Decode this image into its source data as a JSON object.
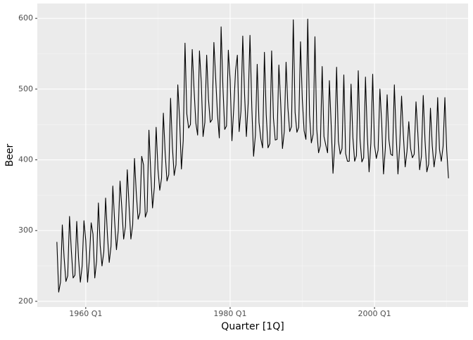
{
  "chart_data": {
    "type": "line",
    "x_label": "Quarter [1Q]",
    "y_label": "Beer",
    "x": [
      "1956 Q1",
      "1956 Q2",
      "1956 Q3",
      "1956 Q4",
      "1957 Q1",
      "1957 Q2",
      "1957 Q3",
      "1957 Q4",
      "1958 Q1",
      "1958 Q2",
      "1958 Q3",
      "1958 Q4",
      "1959 Q1",
      "1959 Q2",
      "1959 Q3",
      "1959 Q4",
      "1960 Q1",
      "1960 Q2",
      "1960 Q3",
      "1960 Q4",
      "1961 Q1",
      "1961 Q2",
      "1961 Q3",
      "1961 Q4",
      "1962 Q1",
      "1962 Q2",
      "1962 Q3",
      "1962 Q4",
      "1963 Q1",
      "1963 Q2",
      "1963 Q3",
      "1963 Q4",
      "1964 Q1",
      "1964 Q2",
      "1964 Q3",
      "1964 Q4",
      "1965 Q1",
      "1965 Q2",
      "1965 Q3",
      "1965 Q4",
      "1966 Q1",
      "1966 Q2",
      "1966 Q3",
      "1966 Q4",
      "1967 Q1",
      "1967 Q2",
      "1967 Q3",
      "1967 Q4",
      "1968 Q1",
      "1968 Q2",
      "1968 Q3",
      "1968 Q4",
      "1969 Q1",
      "1969 Q2",
      "1969 Q3",
      "1969 Q4",
      "1970 Q1",
      "1970 Q2",
      "1970 Q3",
      "1970 Q4",
      "1971 Q1",
      "1971 Q2",
      "1971 Q3",
      "1971 Q4",
      "1972 Q1",
      "1972 Q2",
      "1972 Q3",
      "1972 Q4",
      "1973 Q1",
      "1973 Q2",
      "1973 Q3",
      "1973 Q4",
      "1974 Q1",
      "1974 Q2",
      "1974 Q3",
      "1974 Q4",
      "1975 Q1",
      "1975 Q2",
      "1975 Q3",
      "1975 Q4",
      "1976 Q1",
      "1976 Q2",
      "1976 Q3",
      "1976 Q4",
      "1977 Q1",
      "1977 Q2",
      "1977 Q3",
      "1977 Q4",
      "1978 Q1",
      "1978 Q2",
      "1978 Q3",
      "1978 Q4",
      "1979 Q1",
      "1979 Q2",
      "1979 Q3",
      "1979 Q4",
      "1980 Q1",
      "1980 Q2",
      "1980 Q3",
      "1980 Q4",
      "1981 Q1",
      "1981 Q2",
      "1981 Q3",
      "1981 Q4",
      "1982 Q1",
      "1982 Q2",
      "1982 Q3",
      "1982 Q4",
      "1983 Q1",
      "1983 Q2",
      "1983 Q3",
      "1983 Q4",
      "1984 Q1",
      "1984 Q2",
      "1984 Q3",
      "1984 Q4",
      "1985 Q1",
      "1985 Q2",
      "1985 Q3",
      "1985 Q4",
      "1986 Q1",
      "1986 Q2",
      "1986 Q3",
      "1986 Q4",
      "1987 Q1",
      "1987 Q2",
      "1987 Q3",
      "1987 Q4",
      "1988 Q1",
      "1988 Q2",
      "1988 Q3",
      "1988 Q4",
      "1989 Q1",
      "1989 Q2",
      "1989 Q3",
      "1989 Q4",
      "1990 Q1",
      "1990 Q2",
      "1990 Q3",
      "1990 Q4",
      "1991 Q1",
      "1991 Q2",
      "1991 Q3",
      "1991 Q4",
      "1992 Q1",
      "1992 Q2",
      "1992 Q3",
      "1992 Q4",
      "1993 Q1",
      "1993 Q2",
      "1993 Q3",
      "1993 Q4",
      "1994 Q1",
      "1994 Q2",
      "1994 Q3",
      "1994 Q4",
      "1995 Q1",
      "1995 Q2",
      "1995 Q3",
      "1995 Q4",
      "1996 Q1",
      "1996 Q2",
      "1996 Q3",
      "1996 Q4",
      "1997 Q1",
      "1997 Q2",
      "1997 Q3",
      "1997 Q4",
      "1998 Q1",
      "1998 Q2",
      "1998 Q3",
      "1998 Q4",
      "1999 Q1",
      "1999 Q2",
      "1999 Q3",
      "1999 Q4",
      "2000 Q1",
      "2000 Q2",
      "2000 Q3",
      "2000 Q4",
      "2001 Q1",
      "2001 Q2",
      "2001 Q3",
      "2001 Q4",
      "2002 Q1",
      "2002 Q2",
      "2002 Q3",
      "2002 Q4",
      "2003 Q1",
      "2003 Q2",
      "2003 Q3",
      "2003 Q4",
      "2004 Q1",
      "2004 Q2",
      "2004 Q3",
      "2004 Q4",
      "2005 Q1",
      "2005 Q2",
      "2005 Q3",
      "2005 Q4",
      "2006 Q1",
      "2006 Q2",
      "2006 Q3",
      "2006 Q4",
      "2007 Q1",
      "2007 Q2",
      "2007 Q3",
      "2007 Q4",
      "2008 Q1",
      "2008 Q2",
      "2008 Q3",
      "2008 Q4",
      "2009 Q1",
      "2009 Q2",
      "2009 Q3",
      "2009 Q4",
      "2010 Q1",
      "2010 Q2"
    ],
    "series": [
      {
        "color": "#000000",
        "values": [
          284,
          213,
          227,
          308,
          262,
          228,
          236,
          320,
          272,
          233,
          237,
          313,
          261,
          227,
          250,
          314,
          286,
          227,
          260,
          311,
          295,
          233,
          257,
          339,
          279,
          250,
          270,
          346,
          294,
          255,
          278,
          363,
          313,
          273,
          300,
          370,
          331,
          288,
          306,
          386,
          335,
          288,
          308,
          402,
          353,
          316,
          325,
          405,
          393,
          319,
          327,
          442,
          383,
          332,
          361,
          446,
          387,
          357,
          374,
          466,
          410,
          370,
          379,
          487,
          419,
          378,
          393,
          506,
          458,
          387,
          427,
          565,
          465,
          445,
          450,
          556,
          500,
          452,
          435,
          554,
          510,
          433,
          453,
          548,
          486,
          453,
          457,
          566,
          515,
          464,
          431,
          588,
          503,
          443,
          448,
          555,
          513,
          427,
          473,
          526,
          548,
          440,
          469,
          575,
          493,
          433,
          480,
          576,
          475,
          405,
          435,
          535,
          453,
          430,
          417,
          552,
          464,
          417,
          423,
          554,
          459,
          428,
          429,
          534,
          481,
          416,
          440,
          538,
          474,
          440,
          447,
          598,
          467,
          439,
          446,
          567,
          485,
          441,
          429,
          599,
          464,
          424,
          436,
          574,
          443,
          410,
          420,
          532,
          433,
          421,
          410,
          512,
          449,
          381,
          423,
          531,
          426,
          408,
          416,
          520,
          409,
          398,
          398,
          507,
          432,
          398,
          406,
          526,
          428,
          397,
          403,
          517,
          435,
          383,
          424,
          521,
          421,
          402,
          414,
          500,
          451,
          380,
          416,
          492,
          428,
          408,
          406,
          506,
          435,
          380,
          421,
          490,
          435,
          390,
          412,
          454,
          416,
          403,
          408,
          482,
          438,
          386,
          405,
          491,
          427,
          383,
          394,
          473,
          420,
          390,
          410,
          488,
          415,
          398,
          419,
          488,
          414,
          374
        ]
      }
    ],
    "xticks": [
      "1960 Q1",
      "1980 Q1",
      "2000 Q1"
    ],
    "ylim": [
      192,
      621
    ],
    "yticks": [
      200,
      300,
      400,
      500,
      600
    ],
    "grid": true
  }
}
